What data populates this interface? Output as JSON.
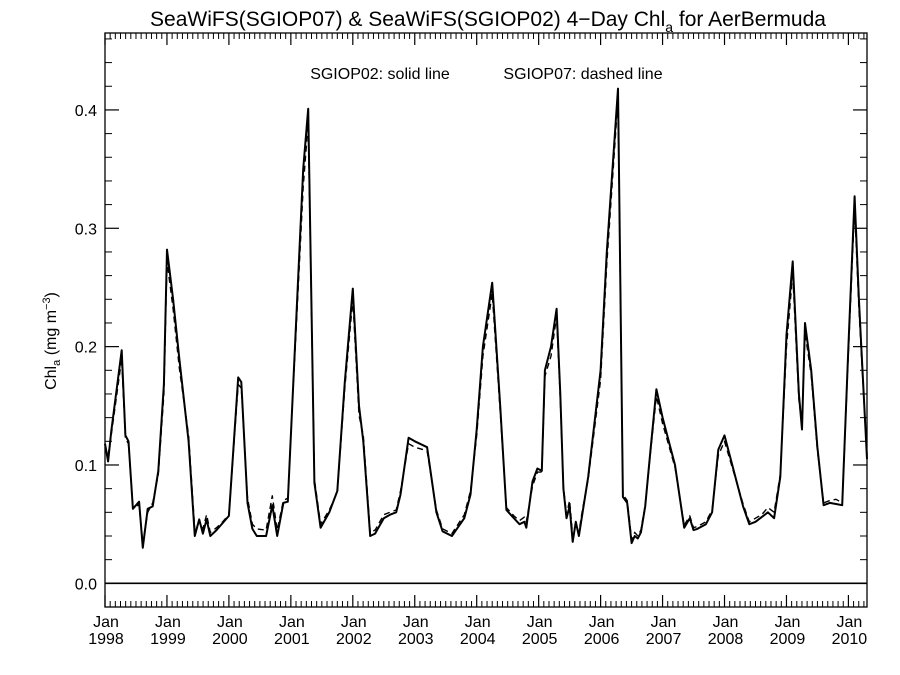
{
  "chart_data": {
    "type": "line",
    "title": {
      "prefix": "SeaWiFS(SGIOP07) & SeaWiFS(SGIOP02) 4−Day Chl",
      "subscript": "a",
      "suffix": " for AerBermuda"
    },
    "ylabel": {
      "main": "Chl",
      "subscript": "a",
      "units": " (mg m",
      "units_sup": "−3",
      "close": ")"
    },
    "annotation": [
      "SGIOP02: solid line",
      "SGIOP07: dashed line"
    ],
    "ylim": [
      -0.02,
      0.465
    ],
    "xlim": [
      1998.0,
      2010.3
    ],
    "yticks": [
      {
        "value": 0.0,
        "label": "0.0"
      },
      {
        "value": 0.1,
        "label": "0.1"
      },
      {
        "value": 0.2,
        "label": "0.2"
      },
      {
        "value": 0.3,
        "label": "0.3"
      },
      {
        "value": 0.4,
        "label": "0.4"
      }
    ],
    "xticks": [
      {
        "value": 1998.0,
        "month": "Jan",
        "year": "1998"
      },
      {
        "value": 1999.0,
        "month": "Jan",
        "year": "1999"
      },
      {
        "value": 2000.0,
        "month": "Jan",
        "year": "2000"
      },
      {
        "value": 2001.0,
        "month": "Jan",
        "year": "2001"
      },
      {
        "value": 2002.0,
        "month": "Jan",
        "year": "2002"
      },
      {
        "value": 2003.0,
        "month": "Jan",
        "year": "2003"
      },
      {
        "value": 2004.0,
        "month": "Jan",
        "year": "2004"
      },
      {
        "value": 2005.0,
        "month": "Jan",
        "year": "2005"
      },
      {
        "value": 2006.0,
        "month": "Jan",
        "year": "2006"
      },
      {
        "value": 2007.0,
        "month": "Jan",
        "year": "2007"
      },
      {
        "value": 2008.0,
        "month": "Jan",
        "year": "2008"
      },
      {
        "value": 2009.0,
        "month": "Jan",
        "year": "2009"
      },
      {
        "value": 2010.0,
        "month": "Jan",
        "year": "2010"
      }
    ],
    "reference_line": 0.0,
    "series": [
      {
        "style": "solid",
        "x": [
          1998.0,
          1998.05,
          1998.1,
          1998.27,
          1998.33,
          1998.38,
          1998.45,
          1998.55,
          1998.61,
          1998.69,
          1998.77,
          1998.86,
          1998.95,
          1999.0,
          1999.1,
          1999.2,
          1999.35,
          1999.45,
          1999.52,
          1999.58,
          1999.64,
          1999.7,
          1999.8,
          1999.9,
          2000.0,
          2000.15,
          2000.2,
          2000.3,
          2000.38,
          2000.45,
          2000.6,
          2000.7,
          2000.78,
          2000.88,
          2000.95,
          2001.2,
          2001.28,
          2001.38,
          2001.48,
          2001.62,
          2001.75,
          2001.87,
          2002.0,
          2002.1,
          2002.17,
          2002.28,
          2002.36,
          2002.5,
          2002.6,
          2002.7,
          2002.77,
          2002.9,
          2003.0,
          2003.2,
          2003.35,
          2003.45,
          2003.6,
          2003.8,
          2003.9,
          2004.0,
          2004.1,
          2004.25,
          2004.38,
          2004.48,
          2004.6,
          2004.69,
          2004.77,
          2004.8,
          2004.9,
          2004.98,
          2005.05,
          2005.1,
          2005.2,
          2005.29,
          2005.35,
          2005.4,
          2005.45,
          2005.5,
          2005.55,
          2005.6,
          2005.65,
          2005.71,
          2005.8,
          2006.0,
          2006.1,
          2006.28,
          2006.36,
          2006.43,
          2006.5,
          2006.55,
          2006.6,
          2006.65,
          2006.72,
          2006.8,
          2006.9,
          2007.0,
          2007.2,
          2007.35,
          2007.44,
          2007.5,
          2007.56,
          2007.7,
          2007.8,
          2007.9,
          2008.0,
          2008.3,
          2008.4,
          2008.5,
          2008.6,
          2008.7,
          2008.8,
          2008.9,
          2009.0,
          2009.1,
          2009.2,
          2009.25,
          2009.3,
          2009.4,
          2009.5,
          2009.6,
          2009.7,
          2009.8,
          2009.9,
          2010.0,
          2010.1,
          2010.17,
          2010.3
        ],
        "y": [
          0.118,
          0.103,
          0.128,
          0.197,
          0.125,
          0.12,
          0.063,
          0.069,
          0.03,
          0.063,
          0.065,
          0.095,
          0.168,
          0.282,
          0.24,
          0.19,
          0.12,
          0.04,
          0.054,
          0.042,
          0.054,
          0.04,
          0.045,
          0.051,
          0.057,
          0.174,
          0.17,
          0.068,
          0.046,
          0.04,
          0.04,
          0.066,
          0.04,
          0.068,
          0.069,
          0.35,
          0.401,
          0.085,
          0.047,
          0.06,
          0.078,
          0.17,
          0.249,
          0.15,
          0.12,
          0.04,
          0.042,
          0.055,
          0.058,
          0.06,
          0.075,
          0.123,
          0.12,
          0.115,
          0.06,
          0.044,
          0.04,
          0.055,
          0.075,
          0.13,
          0.2,
          0.254,
          0.15,
          0.062,
          0.055,
          0.05,
          0.052,
          0.047,
          0.086,
          0.097,
          0.095,
          0.18,
          0.2,
          0.232,
          0.16,
          0.08,
          0.055,
          0.065,
          0.035,
          0.052,
          0.04,
          0.06,
          0.09,
          0.18,
          0.28,
          0.418,
          0.073,
          0.068,
          0.034,
          0.04,
          0.038,
          0.043,
          0.065,
          0.11,
          0.164,
          0.14,
          0.1,
          0.047,
          0.055,
          0.045,
          0.046,
          0.05,
          0.06,
          0.113,
          0.125,
          0.065,
          0.05,
          0.052,
          0.056,
          0.06,
          0.055,
          0.09,
          0.21,
          0.272,
          0.16,
          0.13,
          0.22,
          0.18,
          0.115,
          0.066,
          0.068,
          0.067,
          0.066,
          0.2,
          0.327,
          0.24,
          0.105
        ]
      },
      {
        "style": "dashed",
        "x": [
          1998.0,
          1998.05,
          1998.1,
          1998.27,
          1998.33,
          1998.38,
          1998.45,
          1998.55,
          1998.61,
          1998.69,
          1998.77,
          1998.86,
          1998.95,
          1999.0,
          1999.1,
          1999.2,
          1999.35,
          1999.45,
          1999.52,
          1999.58,
          1999.64,
          1999.7,
          1999.8,
          1999.9,
          2000.0,
          2000.15,
          2000.2,
          2000.3,
          2000.38,
          2000.45,
          2000.6,
          2000.7,
          2000.78,
          2000.88,
          2000.95,
          2001.2,
          2001.28,
          2001.38,
          2001.48,
          2001.62,
          2001.75,
          2001.87,
          2002.0,
          2002.1,
          2002.17,
          2002.28,
          2002.36,
          2002.5,
          2002.6,
          2002.7,
          2002.77,
          2002.9,
          2003.0,
          2003.2,
          2003.35,
          2003.45,
          2003.6,
          2003.8,
          2003.9,
          2004.0,
          2004.1,
          2004.25,
          2004.38,
          2004.48,
          2004.6,
          2004.69,
          2004.77,
          2004.8,
          2004.9,
          2004.98,
          2005.05,
          2005.1,
          2005.2,
          2005.29,
          2005.35,
          2005.4,
          2005.45,
          2005.5,
          2005.55,
          2005.6,
          2005.65,
          2005.71,
          2005.8,
          2006.0,
          2006.1,
          2006.28,
          2006.36,
          2006.43,
          2006.5,
          2006.55,
          2006.6,
          2006.65,
          2006.72,
          2006.8,
          2006.9,
          2007.0,
          2007.2,
          2007.35,
          2007.44,
          2007.5,
          2007.56,
          2007.7,
          2007.8,
          2007.9,
          2008.0,
          2008.3,
          2008.4,
          2008.5,
          2008.6,
          2008.7,
          2008.8,
          2008.9,
          2009.0,
          2009.1,
          2009.2,
          2009.25,
          2009.3,
          2009.4,
          2009.5,
          2009.6,
          2009.7,
          2009.8,
          2009.9,
          2010.0,
          2010.1,
          2010.17,
          2010.3
        ],
        "y": [
          0.115,
          0.108,
          0.125,
          0.19,
          0.122,
          0.118,
          0.065,
          0.066,
          0.034,
          0.06,
          0.068,
          0.092,
          0.16,
          0.272,
          0.232,
          0.182,
          0.125,
          0.045,
          0.052,
          0.046,
          0.058,
          0.043,
          0.047,
          0.052,
          0.058,
          0.168,
          0.165,
          0.072,
          0.05,
          0.046,
          0.045,
          0.074,
          0.045,
          0.07,
          0.072,
          0.335,
          0.39,
          0.088,
          0.05,
          0.062,
          0.077,
          0.165,
          0.24,
          0.142,
          0.125,
          0.043,
          0.045,
          0.058,
          0.06,
          0.062,
          0.078,
          0.118,
          0.115,
          0.112,
          0.062,
          0.046,
          0.042,
          0.058,
          0.078,
          0.125,
          0.192,
          0.245,
          0.145,
          0.064,
          0.057,
          0.053,
          0.056,
          0.052,
          0.082,
          0.094,
          0.094,
          0.175,
          0.192,
          0.226,
          0.155,
          0.082,
          0.058,
          0.07,
          0.04,
          0.05,
          0.043,
          0.063,
          0.088,
          0.172,
          0.27,
          0.41,
          0.075,
          0.07,
          0.037,
          0.043,
          0.04,
          0.045,
          0.066,
          0.108,
          0.158,
          0.135,
          0.098,
          0.049,
          0.057,
          0.047,
          0.048,
          0.052,
          0.062,
          0.108,
          0.12,
          0.067,
          0.052,
          0.055,
          0.058,
          0.064,
          0.06,
          0.092,
          0.2,
          0.262,
          0.155,
          0.135,
          0.212,
          0.176,
          0.112,
          0.068,
          0.07,
          0.071,
          0.068,
          0.195,
          0.318,
          0.232,
          0.108
        ]
      }
    ]
  }
}
